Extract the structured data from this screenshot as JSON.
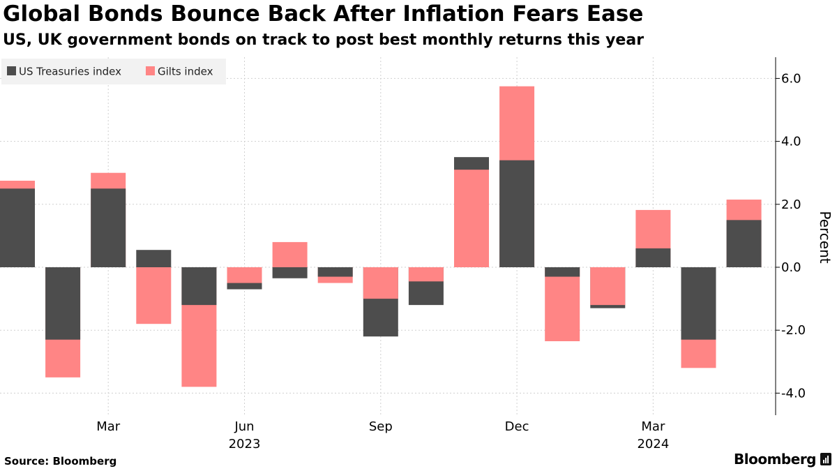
{
  "title": "Global Bonds Bounce Back After Inflation Fears Ease",
  "subtitle": "US, UK government bonds on track to post best monthly returns this year",
  "source": "Source: Bloomberg",
  "brand": "Bloomberg",
  "colors": {
    "us_treasuries": "#4d4d4d",
    "gilts": "#ff8585",
    "grid": "#cfcfcf",
    "axis": "#000000",
    "legend_bg": "#f2f2f2"
  },
  "chart_data": {
    "type": "bar",
    "ylabel": "Percent",
    "ylim": [
      -4.7,
      6.7
    ],
    "yticks": [
      6.0,
      4.0,
      2.0,
      0.0,
      -2.0,
      -4.0
    ],
    "ytick_labels": [
      "6.0",
      "4.0",
      "2.0",
      "0.0",
      "-2.0",
      "-4.0"
    ],
    "y_axis_side": "right",
    "grid": true,
    "legend_position": "top-left",
    "months": [
      "Jan 2023",
      "Feb 2023",
      "Mar 2023",
      "Apr 2023",
      "May 2023",
      "Jun 2023",
      "Jul 2023",
      "Aug 2023",
      "Sep 2023",
      "Oct 2023",
      "Nov 2023",
      "Dec 2023",
      "Jan 2024",
      "Feb 2024",
      "Mar 2024",
      "Apr 2024",
      "May 2024"
    ],
    "x_tick_labels": [
      {
        "label": "Mar",
        "year": "2023",
        "month_index": 2
      },
      {
        "label": "Jun",
        "year": "",
        "month_index": 5
      },
      {
        "label": "Sep",
        "year": "",
        "month_index": 8
      },
      {
        "label": "Dec",
        "year": "",
        "month_index": 11
      },
      {
        "label": "Mar",
        "year": "2024",
        "month_index": 14
      }
    ],
    "year_labels": [
      {
        "label": "2023",
        "month_index": 5
      },
      {
        "label": "2024",
        "month_index": 14
      }
    ],
    "series": [
      {
        "name": "US Treasuries index",
        "values": [
          2.5,
          -2.3,
          2.5,
          0.55,
          -1.2,
          -0.7,
          -0.35,
          -0.3,
          -2.2,
          -1.2,
          3.5,
          3.4,
          -0.3,
          -1.3,
          0.6,
          -2.3,
          1.5
        ]
      },
      {
        "name": "Gilts index",
        "values": [
          2.75,
          -3.5,
          3.0,
          -1.8,
          -3.8,
          -0.5,
          0.8,
          -0.5,
          -1.0,
          -0.45,
          3.1,
          5.75,
          -2.35,
          -1.2,
          1.82,
          -3.2,
          2.15
        ]
      }
    ]
  }
}
